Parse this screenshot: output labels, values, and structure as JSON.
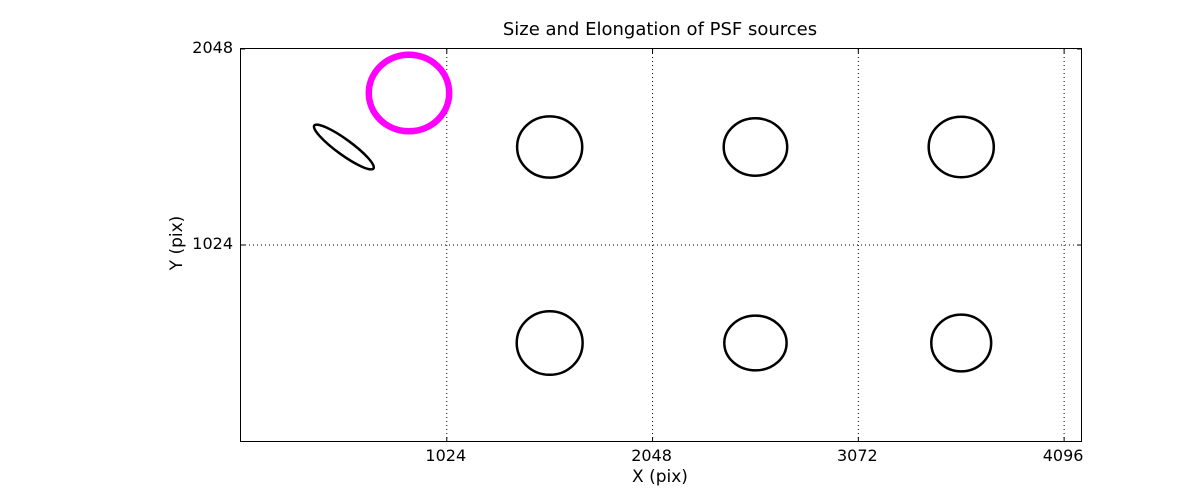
{
  "chart_data": {
    "type": "ellipse-map",
    "title": "Size and Elongation of PSF sources",
    "xlabel": "X (pix)",
    "ylabel": "Y (pix)",
    "xlim": [
      0,
      4180
    ],
    "ylim": [
      0,
      2048
    ],
    "xticks": [
      1024,
      2048,
      3072,
      4096
    ],
    "yticks": [
      1024,
      2048
    ],
    "grid": {
      "on": true,
      "style": "dotted",
      "color": "#000000"
    },
    "axis_color": "#000000",
    "background_color": "#ffffff",
    "highlight_color": "#ff00ff",
    "sources": [
      {
        "x": 512,
        "y": 1536,
        "semi_major": 182,
        "semi_minor": 40,
        "angle_deg": 36,
        "color": "#000000",
        "linewidth": 2.5
      },
      {
        "x": 836,
        "y": 1818,
        "semi_major": 200,
        "semi_minor": 200,
        "angle_deg": 0,
        "color": "#ff00ff",
        "linewidth": 6.5
      },
      {
        "x": 1536,
        "y": 1536,
        "semi_major": 162,
        "semi_minor": 160,
        "angle_deg": 0,
        "color": "#000000",
        "linewidth": 2.5
      },
      {
        "x": 2560,
        "y": 1536,
        "semi_major": 158,
        "semi_minor": 150,
        "angle_deg": 0,
        "color": "#000000",
        "linewidth": 2.5
      },
      {
        "x": 3584,
        "y": 1536,
        "semi_major": 162,
        "semi_minor": 158,
        "angle_deg": 0,
        "color": "#000000",
        "linewidth": 2.5
      },
      {
        "x": 1536,
        "y": 512,
        "semi_major": 164,
        "semi_minor": 166,
        "angle_deg": 0,
        "color": "#000000",
        "linewidth": 2.5
      },
      {
        "x": 2560,
        "y": 512,
        "semi_major": 155,
        "semi_minor": 143,
        "angle_deg": 0,
        "color": "#000000",
        "linewidth": 2.5
      },
      {
        "x": 3584,
        "y": 512,
        "semi_major": 149,
        "semi_minor": 148,
        "angle_deg": 0,
        "color": "#000000",
        "linewidth": 2.5
      }
    ]
  }
}
